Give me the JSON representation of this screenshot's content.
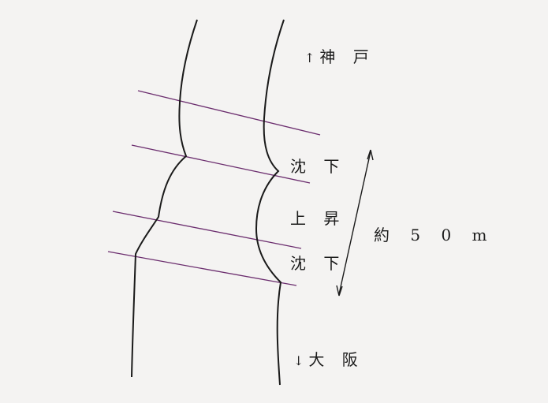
{
  "labels": {
    "north_arrow": "↑",
    "north_dest": "神 戸",
    "subsidence_upper": "沈 下",
    "uplift": "上 昇",
    "subsidence_lower": "沈 下",
    "distance": "約 5 0 m",
    "south_arrow": "↓",
    "south_dest": "大 阪"
  },
  "colors": {
    "road_edge": "#1a1a1a",
    "cross_line": "#6b2d6e",
    "text": "#1c1c1c",
    "background": "#f4f3f2"
  }
}
